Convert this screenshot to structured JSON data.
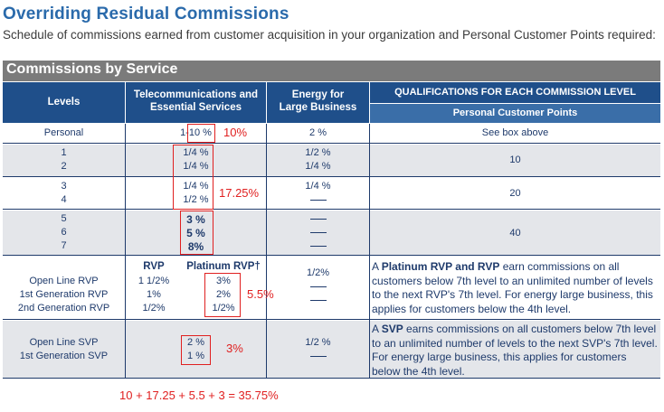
{
  "heading": {
    "title": "Overriding Residual Commissions",
    "subtitle": "Schedule of commissions earned from customer acquisition in your organization and Personal Customer Points required:"
  },
  "section_title": "Commissions by Service",
  "columns": {
    "levels": "Levels",
    "telecom": [
      "Telecommunications and",
      "Essential Services"
    ],
    "energy": [
      "Energy for",
      "Large Business"
    ],
    "qualifications": "QUALIFICATIONS FOR EACH COMMISSION LEVEL",
    "points": "Personal Customer Points"
  },
  "rows": {
    "personal": {
      "level": "Personal",
      "telecom": "1-10 %",
      "energy": "2 %",
      "points": "See box above"
    },
    "r12": {
      "levels": [
        "1",
        "2"
      ],
      "telecom": [
        "1/4 %",
        "1/4 %"
      ],
      "energy": [
        "1/2 %",
        "1/4 %"
      ],
      "points": "10"
    },
    "r34": {
      "levels": [
        "3",
        "4"
      ],
      "telecom": [
        "1/4 %",
        "1/2 %"
      ],
      "energy": [
        "1/4 %"
      ],
      "points": "20"
    },
    "r567": {
      "levels": [
        "5",
        "6",
        "7"
      ],
      "telecom": [
        "3 %",
        "5 %",
        "8%"
      ],
      "points": "40"
    },
    "rvp": {
      "levels": [
        "Open Line RVP",
        "1st Generation RVP",
        "2nd Generation RVP"
      ],
      "rvp_header": "RVP",
      "rvp_values": [
        "1 1/2%",
        "1%",
        "1/2%"
      ],
      "platinum_header": "Platinum RVP†",
      "platinum_values": [
        "3%",
        "2%",
        "1/2%"
      ],
      "energy": [
        "1/2%"
      ],
      "desc_bold_1": "Platinum RVP and RVP",
      "desc_pre": "A ",
      "desc_post": " earn commissions on all customers below 7th level to an unlimited number of levels to the next RVP's 7th level. For energy large business, this applies for customers below the 4th level."
    },
    "svp": {
      "levels": [
        "Open Line SVP",
        "1st Generation SVP"
      ],
      "telecom": [
        "2 %",
        "1 %"
      ],
      "energy": [
        "1/2 %"
      ],
      "desc_pre": "A ",
      "desc_bold": "SVP",
      "desc_post": " earns commissions on all customers below 7th level to an unlimited number of levels to the next SVP's 7th level. For energy large business, this applies for customers below the 4th level."
    }
  },
  "annotations": {
    "a1": "10%",
    "a2": "17.25%",
    "a3": "5.5%",
    "a4": "3%",
    "total": "10 + 17.25 + 5.5 + 3 = 35.75%",
    "color": "#e02020"
  },
  "colors": {
    "header_blue": "#1f4f8a",
    "subheader_blue": "#3a6ea8",
    "title_blue": "#2a6aab",
    "shade": "#e4e6ea",
    "bar_gray": "#7b7b7b"
  }
}
